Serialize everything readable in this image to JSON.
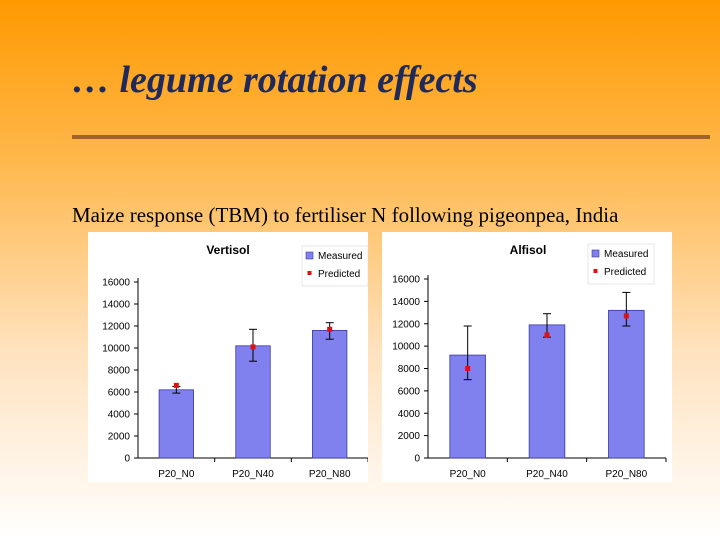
{
  "slide": {
    "title": "… legume rotation effects",
    "subtitle": "Maize response (TBM) to fertiliser N following pigeonpea, India"
  },
  "colors": {
    "measured_bar": "#8080ee",
    "measured_edge": "#3a3aa0",
    "predicted_marker": "#dd1111",
    "title_text": "#1f2a5c",
    "rule": "#a0642a"
  },
  "chart_data": [
    {
      "type": "bar",
      "title": "Vertisol",
      "categories": [
        "P20_N0",
        "P20_N40",
        "P20_N80"
      ],
      "ylim": [
        0,
        16000
      ],
      "yticks": [
        0,
        2000,
        4000,
        6000,
        8000,
        10000,
        12000,
        14000,
        16000
      ],
      "grid": false,
      "legend_position": "top-right",
      "series": [
        {
          "name": "Measured",
          "kind": "bar",
          "values": [
            6200,
            10200,
            11600
          ],
          "error_low": [
            5900,
            8800,
            10800
          ],
          "error_high": [
            6500,
            11700,
            12300
          ]
        },
        {
          "name": "Predicted",
          "kind": "marker",
          "values": [
            6600,
            10100,
            11700
          ]
        }
      ]
    },
    {
      "type": "bar",
      "title": "Alfisol",
      "categories": [
        "P20_N0",
        "P20_N40",
        "P20_N80"
      ],
      "ylim": [
        0,
        16000
      ],
      "yticks": [
        0,
        2000,
        4000,
        6000,
        8000,
        10000,
        12000,
        14000,
        16000
      ],
      "grid": false,
      "legend_position": "top-right",
      "series": [
        {
          "name": "Measured",
          "kind": "bar",
          "values": [
            9200,
            11900,
            13200
          ],
          "error_low": [
            7000,
            10800,
            11800
          ],
          "error_high": [
            11800,
            12900,
            14800
          ]
        },
        {
          "name": "Predicted",
          "kind": "marker",
          "values": [
            8000,
            11000,
            12700
          ]
        }
      ]
    }
  ]
}
